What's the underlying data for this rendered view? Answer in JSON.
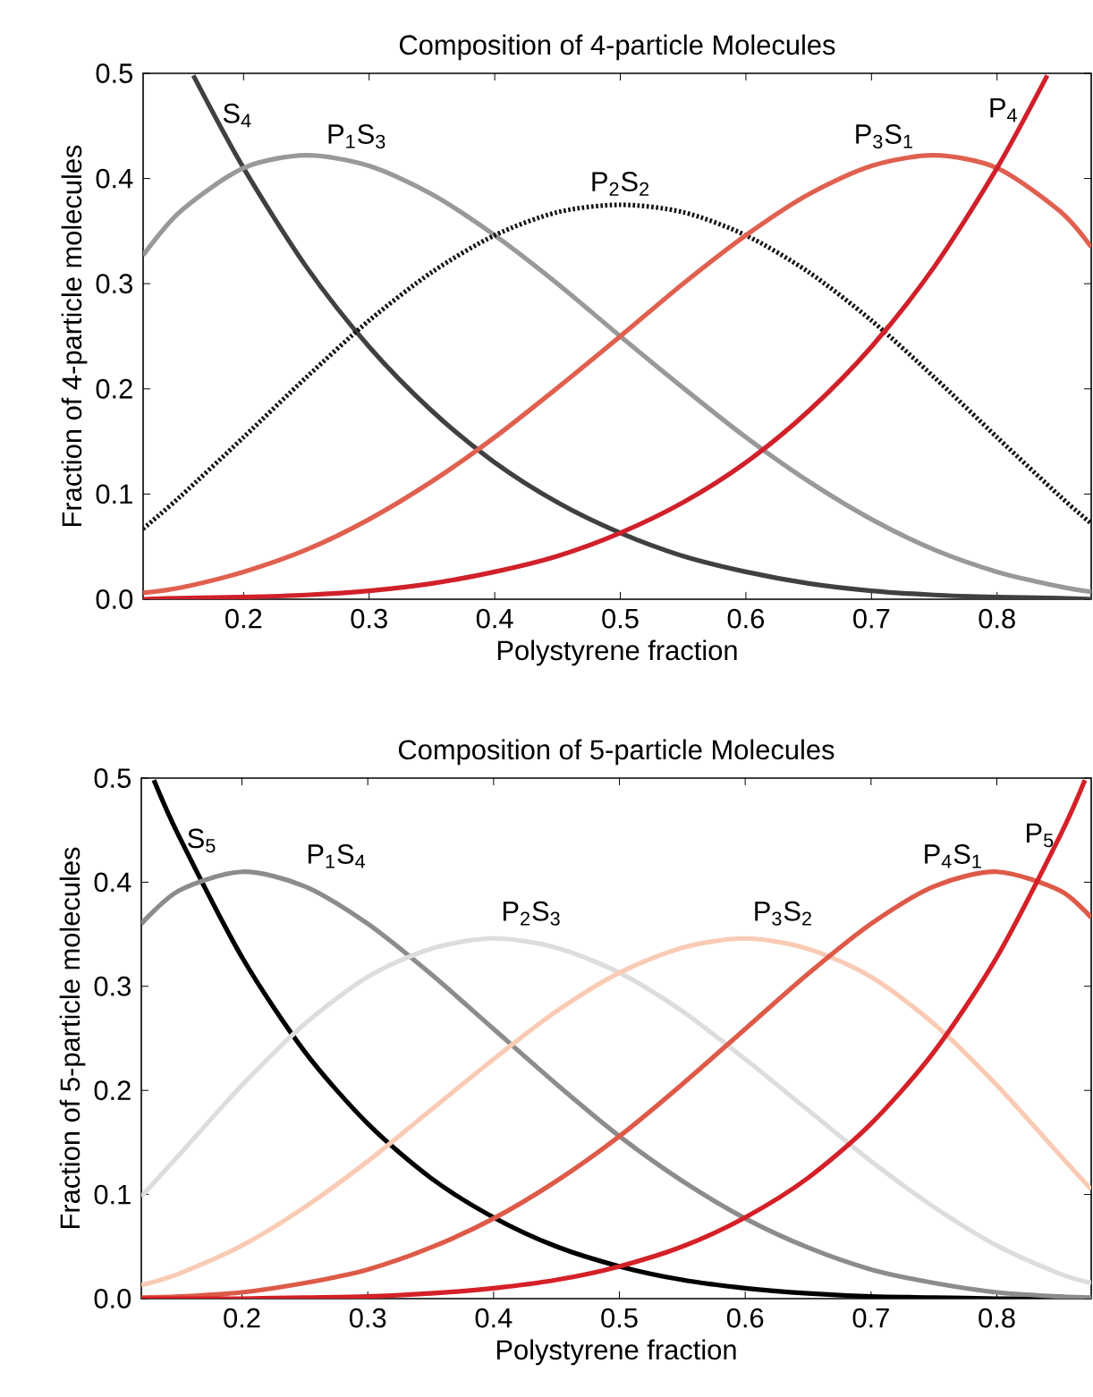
{
  "chart_data": [
    {
      "type": "line",
      "title": "Composition of 4-particle Molecules",
      "xlabel": "Polystyrene fraction",
      "ylabel": "Fraction of 4-particle molecules",
      "xlim": [
        0.12,
        0.875
      ],
      "ylim": [
        0,
        0.5
      ],
      "xticks": [
        0.2,
        0.3,
        0.4,
        0.5,
        0.6,
        0.7,
        0.8
      ],
      "yticks": [
        {
          "value": 0,
          "label": "0.0"
        },
        0.1,
        0.2,
        0.3,
        0.4,
        0.5
      ],
      "marker": "none",
      "grid": false,
      "x": [
        0.12,
        0.15,
        0.2,
        0.25,
        0.3,
        0.35,
        0.4,
        0.45,
        0.5,
        0.55,
        0.6,
        0.65,
        0.7,
        0.75,
        0.8,
        0.85,
        0.875
      ],
      "series": [
        {
          "name": "S$_{4}$",
          "color": "#404040",
          "line_style": "solid",
          "x": [
            0.16,
            0.2,
            0.25,
            0.3,
            0.35,
            0.4,
            0.45,
            0.5,
            0.55,
            0.6,
            0.65,
            0.7,
            0.75,
            0.8,
            0.85,
            0.875
          ],
          "values": [
            0.498,
            0.41,
            0.316,
            0.24,
            0.179,
            0.13,
            0.092,
            0.063,
            0.041,
            0.026,
            0.015,
            0.008,
            0.004,
            0.002,
            0.001,
            0.0
          ]
        },
        {
          "name": "P$_{1}$S$_{3}$",
          "color": "#999999",
          "line_style": "solid",
          "values": [
            0.327,
            0.369,
            0.41,
            0.422,
            0.412,
            0.385,
            0.346,
            0.3,
            0.25,
            0.201,
            0.154,
            0.112,
            0.076,
            0.047,
            0.026,
            0.012,
            0.007
          ]
        },
        {
          "name": "P$_{2}$S$_{2}$",
          "color": "#111111",
          "line_style": "dotted",
          "values": [
            0.067,
            0.098,
            0.154,
            0.211,
            0.265,
            0.311,
            0.346,
            0.368,
            0.375,
            0.368,
            0.346,
            0.311,
            0.265,
            0.211,
            0.154,
            0.098,
            0.072
          ]
        },
        {
          "name": "P$_{3}$S$_{1}$",
          "color": "#e0604f",
          "line_style": "solid",
          "values": [
            0.006,
            0.011,
            0.026,
            0.047,
            0.076,
            0.112,
            0.154,
            0.201,
            0.25,
            0.3,
            0.346,
            0.385,
            0.412,
            0.422,
            0.41,
            0.369,
            0.335
          ]
        },
        {
          "name": "P$_{4}$",
          "color": "#d0202a",
          "line_style": "solid",
          "x": [
            0.12,
            0.15,
            0.2,
            0.25,
            0.3,
            0.35,
            0.4,
            0.45,
            0.5,
            0.55,
            0.6,
            0.65,
            0.7,
            0.75,
            0.8,
            0.84
          ],
          "values": [
            0.0,
            0.001,
            0.002,
            0.004,
            0.008,
            0.015,
            0.026,
            0.041,
            0.063,
            0.092,
            0.13,
            0.179,
            0.24,
            0.316,
            0.41,
            0.498
          ]
        }
      ]
    },
    {
      "type": "line",
      "title": "Composition of 5-particle Molecules",
      "xlabel": "Polystyrene fraction",
      "ylabel": "Fraction of 5-particle molecules",
      "xlim": [
        0.12,
        0.875
      ],
      "ylim": [
        0,
        0.5
      ],
      "xticks": [
        0.2,
        0.3,
        0.4,
        0.5,
        0.6,
        0.7,
        0.8
      ],
      "yticks": [
        {
          "value": 0,
          "label": "0.0"
        },
        0.1,
        0.2,
        0.3,
        0.4,
        0.5
      ],
      "marker": "none",
      "grid": false,
      "x": [
        0.12,
        0.15,
        0.2,
        0.25,
        0.3,
        0.35,
        0.4,
        0.45,
        0.5,
        0.55,
        0.6,
        0.65,
        0.7,
        0.75,
        0.8,
        0.85,
        0.875
      ],
      "series": [
        {
          "name": "S$_{5}$",
          "color": "#000000",
          "line_style": "solid",
          "x": [
            0.13,
            0.15,
            0.2,
            0.25,
            0.3,
            0.35,
            0.4,
            0.45,
            0.5,
            0.55,
            0.6,
            0.65,
            0.7,
            0.75,
            0.8,
            0.85,
            0.875
          ],
          "values": [
            0.498,
            0.444,
            0.328,
            0.237,
            0.168,
            0.116,
            0.078,
            0.05,
            0.031,
            0.018,
            0.01,
            0.005,
            0.002,
            0.001,
            0.0,
            0.0,
            0.0
          ]
        },
        {
          "name": "P$_{1}$S$_{4}$",
          "color": "#8c8c8c",
          "line_style": "solid",
          "values": [
            0.36,
            0.392,
            0.41,
            0.396,
            0.36,
            0.312,
            0.259,
            0.206,
            0.156,
            0.113,
            0.077,
            0.049,
            0.028,
            0.015,
            0.006,
            0.002,
            0.001
          ]
        },
        {
          "name": "P$_{2}$S$_{3}$",
          "color": "#dddddd",
          "line_style": "solid",
          "values": [
            0.098,
            0.138,
            0.205,
            0.264,
            0.309,
            0.336,
            0.346,
            0.337,
            0.313,
            0.276,
            0.23,
            0.181,
            0.132,
            0.088,
            0.051,
            0.024,
            0.015
          ]
        },
        {
          "name": "P$_{3}$S$_{2}$",
          "color": "#f9cbb5",
          "line_style": "solid",
          "values": [
            0.013,
            0.024,
            0.051,
            0.088,
            0.132,
            0.181,
            0.23,
            0.276,
            0.313,
            0.337,
            0.346,
            0.336,
            0.309,
            0.264,
            0.205,
            0.138,
            0.105
          ]
        },
        {
          "name": "P$_{4}$S$_{1}$",
          "color": "#de5a48",
          "line_style": "solid",
          "values": [
            0.001,
            0.002,
            0.006,
            0.015,
            0.028,
            0.049,
            0.077,
            0.113,
            0.156,
            0.206,
            0.259,
            0.312,
            0.36,
            0.396,
            0.41,
            0.392,
            0.366
          ]
        },
        {
          "name": "P$_{5}$",
          "color": "#d42027",
          "line_style": "solid",
          "x": [
            0.12,
            0.15,
            0.2,
            0.25,
            0.3,
            0.35,
            0.4,
            0.45,
            0.5,
            0.55,
            0.6,
            0.65,
            0.7,
            0.75,
            0.8,
            0.85,
            0.87
          ],
          "values": [
            0.0,
            0.0,
            0.0,
            0.001,
            0.002,
            0.005,
            0.01,
            0.018,
            0.031,
            0.05,
            0.078,
            0.116,
            0.168,
            0.237,
            0.328,
            0.444,
            0.498
          ]
        }
      ]
    }
  ]
}
